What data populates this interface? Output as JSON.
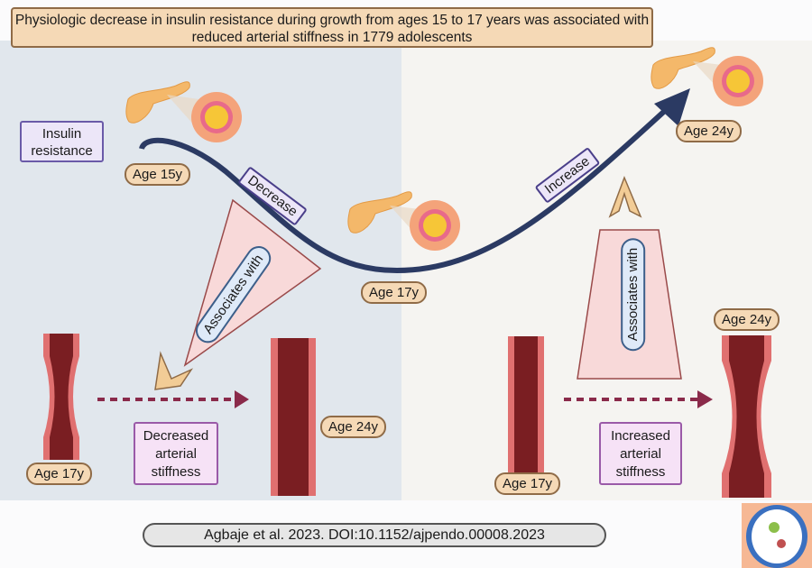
{
  "title": "Physiologic decrease in insulin resistance during growth from ages 15 to 17 years was associated with reduced arterial stiffness in 1779 adolescents",
  "curve": {
    "y_label": "Insulin resistance",
    "start_age": "Age 15y",
    "mid_age": "Age 17y",
    "end_age": "Age 24y",
    "decrease_label": "Decrease",
    "increase_label": "Increase"
  },
  "left_panel": {
    "association_label": "Associates with",
    "artery_start_age": "Age 17y",
    "artery_end_age": "Age 24y",
    "outcome": "Decreased arterial stiffness"
  },
  "right_panel": {
    "association_label": "Associates with",
    "artery_start_age": "Age 17y",
    "artery_end_age": "Age 24y",
    "outcome": "Increased arterial stiffness"
  },
  "citation": "Agbaje et al. 2023. DOI:10.1152/ajpendo.00008.2023",
  "colors": {
    "left_bg": "#e1e7ed",
    "right_bg": "#f5f4f1",
    "curve": "#2b3a63",
    "artery_lumen": "#7a1e22",
    "artery_wall": "#e07070",
    "age_badge": "#f5d9b6",
    "dashed_arrow": "#8a2a4a"
  },
  "icons": [
    "pancreas-icon",
    "islet-icon",
    "artery-icon",
    "logo-icon"
  ]
}
